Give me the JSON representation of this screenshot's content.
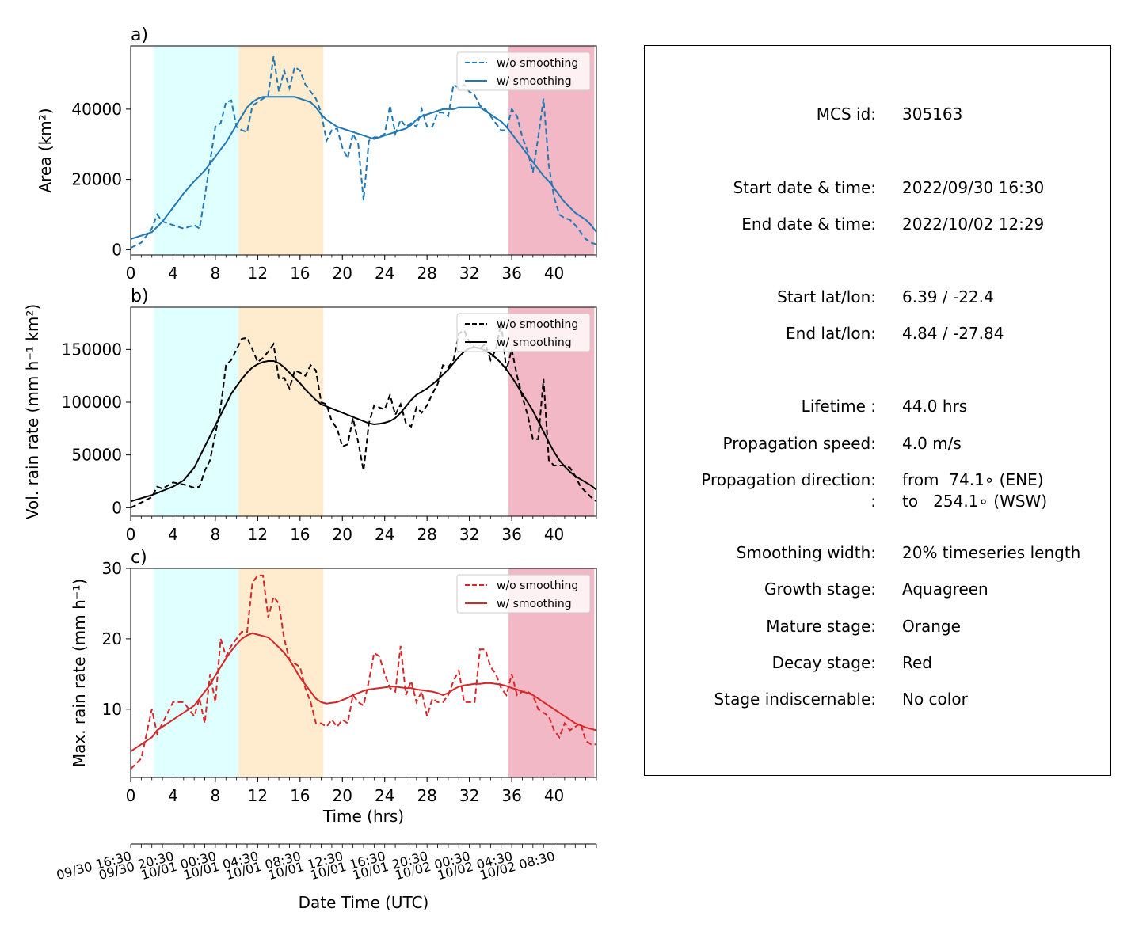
{
  "colors": {
    "growth": "#e0ffff",
    "mature": "#ffebcd",
    "decay": "#f2b8c5",
    "area_line": "#1f77b4",
    "volrain_line": "#000000",
    "maxrain_line": "#d62728"
  },
  "stages": {
    "growth": [
      2.2,
      10.2
    ],
    "mature": [
      10.2,
      18.2
    ],
    "decay": [
      35.7,
      43.8
    ]
  },
  "legend": {
    "raw": "w/o smoothing",
    "smooth": "w/ smoothing",
    "placement": "upper right"
  },
  "chart_data": [
    {
      "type": "line",
      "panel_label": "a)",
      "ylabel": "Area  (km²)",
      "ylim": [
        -1500,
        58000
      ],
      "xlim": [
        0,
        44
      ],
      "yticks": [
        0,
        20000,
        40000
      ],
      "ytick_labels": [
        "0",
        "20000",
        "40000"
      ],
      "xticks": [
        0,
        4,
        8,
        12,
        16,
        20,
        24,
        28,
        32,
        36,
        40
      ],
      "x": [
        0,
        1,
        2,
        2.5,
        3,
        4,
        5,
        6,
        6.5,
        7,
        7.5,
        8,
        8.5,
        9,
        9.5,
        10,
        10.5,
        11,
        11.5,
        12,
        12.5,
        13,
        13.5,
        14,
        14.5,
        15,
        15.5,
        16,
        16.5,
        17,
        17.5,
        18,
        18.5,
        19,
        19.5,
        20,
        20.5,
        21,
        21.5,
        22,
        22.5,
        23,
        23.5,
        24,
        24.5,
        25,
        25.5,
        26,
        26.5,
        27,
        27.5,
        28,
        28.5,
        29,
        29.5,
        30,
        30.5,
        31,
        31.5,
        32,
        32.5,
        33,
        33.5,
        34,
        34.5,
        35,
        35.5,
        36,
        36.5,
        37,
        37.5,
        38,
        38.5,
        39,
        39.5,
        40,
        40.5,
        41,
        41.5,
        42,
        42.5,
        43,
        43.5,
        44
      ],
      "series": [
        {
          "name": "w/o smoothing",
          "style": "dashed",
          "values": [
            500,
            2000,
            6000,
            10000,
            8000,
            7000,
            6000,
            7000,
            6000,
            15000,
            25000,
            35000,
            36000,
            42000,
            42500,
            35000,
            34000,
            33500,
            41000,
            42000,
            43000,
            44000,
            55000,
            45000,
            51000,
            46000,
            52000,
            51000,
            47000,
            45000,
            43000,
            39000,
            31000,
            34000,
            34500,
            29000,
            26000,
            33000,
            30000,
            14000,
            31000,
            32000,
            32000,
            33000,
            41000,
            33000,
            37000,
            35000,
            36000,
            35000,
            40000,
            35000,
            35000,
            39000,
            39000,
            38000,
            47000,
            46000,
            47000,
            45000,
            44000,
            41000,
            40000,
            38000,
            36000,
            34000,
            34000,
            40000,
            38000,
            32000,
            28000,
            22000,
            32000,
            43000,
            24000,
            15000,
            10000,
            9000,
            8500,
            7000,
            5000,
            3000,
            2000,
            1500
          ],
          "smooth_values": [
            3000,
            4000,
            5000,
            6500,
            8000,
            12000,
            16000,
            19500,
            21000,
            22500,
            24500,
            26500,
            28500,
            30500,
            33000,
            35500,
            38000,
            40500,
            42000,
            43000,
            43500,
            43500,
            43500,
            43500,
            43500,
            43500,
            43500,
            43000,
            42500,
            42000,
            40500,
            38500,
            37000,
            36000,
            35000,
            34500,
            34000,
            33500,
            33000,
            32500,
            32000,
            31500,
            32000,
            32500,
            33000,
            33500,
            34000,
            34500,
            35500,
            37000,
            38000,
            38500,
            39000,
            39500,
            40000,
            40000,
            40000,
            40500,
            40500,
            40500,
            40500,
            40500,
            39500,
            38500,
            37500,
            36500,
            35000,
            33000,
            31000,
            29000,
            27000,
            25000,
            23000,
            21000,
            19500,
            17500,
            15500,
            13500,
            12000,
            10500,
            9500,
            8500,
            7000,
            5000
          ]
        }
      ]
    },
    {
      "type": "line",
      "panel_label": "b)",
      "ylabel": "Vol. rain rate (mm h⁻¹ km²)",
      "ylim": [
        -8000,
        190000
      ],
      "xlim": [
        0,
        44
      ],
      "yticks": [
        0,
        50000,
        100000,
        150000
      ],
      "ytick_labels": [
        "0",
        "50000",
        "100000",
        "150000"
      ],
      "xticks": [
        0,
        4,
        8,
        12,
        16,
        20,
        24,
        28,
        32,
        36,
        40
      ],
      "x": [
        0,
        1,
        2,
        2.5,
        3,
        4,
        5,
        6,
        6.5,
        7,
        7.5,
        8,
        8.5,
        9,
        9.5,
        10,
        10.5,
        11,
        11.5,
        12,
        12.5,
        13,
        13.5,
        14,
        14.5,
        15,
        15.5,
        16,
        16.5,
        17,
        17.5,
        18,
        18.5,
        19,
        19.5,
        20,
        20.5,
        21,
        21.5,
        22,
        22.5,
        23,
        23.5,
        24,
        24.5,
        25,
        25.5,
        26,
        26.5,
        27,
        27.5,
        28,
        28.5,
        29,
        29.5,
        30,
        30.5,
        31,
        31.5,
        32,
        32.5,
        33,
        33.5,
        34,
        34.5,
        35,
        35.5,
        36,
        36.5,
        37,
        37.5,
        38,
        38.5,
        39,
        39.5,
        40,
        40.5,
        41,
        41.5,
        42,
        42.5,
        43,
        43.5,
        44
      ],
      "series": [
        {
          "name": "w/o smoothing",
          "style": "dashed",
          "values": [
            0,
            5000,
            10000,
            20000,
            18000,
            24000,
            22000,
            19000,
            20000,
            35000,
            45000,
            70000,
            95000,
            135000,
            140000,
            150000,
            160000,
            161000,
            150000,
            138000,
            142000,
            148000,
            155000,
            122000,
            123000,
            113000,
            130000,
            128000,
            125000,
            135000,
            130000,
            100000,
            98000,
            82000,
            75000,
            58000,
            60000,
            85000,
            62000,
            35000,
            80000,
            97000,
            95000,
            93000,
            107000,
            88000,
            98000,
            80000,
            77000,
            95000,
            90000,
            97000,
            108000,
            117000,
            135000,
            133000,
            140000,
            165000,
            168000,
            157000,
            152000,
            151000,
            155000,
            140000,
            150000,
            175000,
            130000,
            150000,
            125000,
            105000,
            88000,
            65000,
            65000,
            122000,
            45000,
            40000,
            40000,
            40000,
            38000,
            30000,
            20000,
            15000,
            10000,
            6000
          ],
          "smooth_values": [
            6000,
            9000,
            12000,
            14000,
            16000,
            20000,
            26000,
            38000,
            48000,
            58000,
            68000,
            78000,
            88000,
            98000,
            108000,
            115000,
            122000,
            128000,
            133000,
            136000,
            138000,
            139000,
            139000,
            137000,
            133000,
            128000,
            123000,
            118000,
            112000,
            107000,
            102000,
            98000,
            96000,
            94000,
            92000,
            90000,
            88000,
            86000,
            84000,
            82000,
            80000,
            79000,
            79500,
            80500,
            82000,
            85000,
            90000,
            96000,
            102000,
            107000,
            110000,
            113000,
            117000,
            121000,
            126000,
            131000,
            137000,
            143000,
            148000,
            151000,
            152000,
            151000,
            149000,
            146000,
            142000,
            137000,
            131000,
            124000,
            116000,
            108000,
            100000,
            92000,
            82000,
            72000,
            62000,
            53000,
            45000,
            39000,
            34000,
            30000,
            27000,
            24000,
            21000,
            17000
          ]
        }
      ]
    },
    {
      "type": "line",
      "panel_label": "c)",
      "ylabel": "Max. rain rate  (mm h⁻¹)",
      "ylim": [
        0.3,
        30
      ],
      "xlim": [
        0,
        44
      ],
      "xlabel": "Time (hrs)",
      "yticks": [
        10,
        20,
        30
      ],
      "ytick_labels": [
        "10",
        "20",
        "30"
      ],
      "xticks": [
        0,
        4,
        8,
        12,
        16,
        20,
        24,
        28,
        32,
        36,
        40
      ],
      "x": [
        0,
        1,
        2,
        2.5,
        3,
        4,
        5,
        6,
        6.5,
        7,
        7.5,
        8,
        8.5,
        9,
        9.5,
        10,
        10.5,
        11,
        11.5,
        12,
        12.5,
        13,
        13.5,
        14,
        14.5,
        15,
        15.5,
        16,
        16.5,
        17,
        17.5,
        18,
        18.5,
        19,
        19.5,
        20,
        20.5,
        21,
        21.5,
        22,
        22.5,
        23,
        23.5,
        24,
        24.5,
        25,
        25.5,
        26,
        26.5,
        27,
        27.5,
        28,
        28.5,
        29,
        29.5,
        30,
        30.5,
        31,
        31.5,
        32,
        32.5,
        33,
        33.5,
        34,
        34.5,
        35,
        35.5,
        36,
        36.5,
        37,
        37.5,
        38,
        38.5,
        39,
        39.5,
        40,
        40.5,
        41,
        41.5,
        42,
        42.5,
        43,
        43.5,
        44
      ],
      "series": [
        {
          "name": "w/o smoothing",
          "style": "dashed",
          "values": [
            1.5,
            3,
            10,
            6.5,
            8,
            11,
            11,
            9,
            11.5,
            8,
            15,
            11,
            20,
            17.5,
            19,
            20,
            21,
            21,
            28,
            29,
            29,
            23,
            26,
            25,
            20,
            17,
            16.5,
            16,
            13,
            11,
            8,
            8,
            7.5,
            8.5,
            7.5,
            8.5,
            8,
            12,
            11,
            10.5,
            14,
            18,
            17.5,
            15,
            13,
            12.5,
            19,
            12,
            14,
            11,
            12.5,
            9,
            11.5,
            11,
            11,
            12,
            14,
            15.5,
            11,
            11,
            11,
            18.5,
            18.5,
            16,
            15,
            13,
            12,
            15,
            12,
            12.5,
            12.5,
            12,
            10,
            9.5,
            9,
            7,
            6,
            8,
            7,
            7.5,
            8,
            5.5,
            5,
            5
          ],
          "smooth_values": [
            4,
            5,
            6,
            7,
            7.5,
            8.5,
            9.5,
            10.5,
            11.5,
            12.5,
            13.5,
            14.8,
            16,
            17.2,
            18.3,
            19.2,
            20,
            20.5,
            20.8,
            20.6,
            20.4,
            20.2,
            19.5,
            18.8,
            18,
            17,
            15.8,
            14.5,
            13.5,
            12.5,
            11.5,
            11,
            10.8,
            10.9,
            11,
            11.3,
            11.6,
            12,
            12.3,
            12.6,
            12.8,
            12.9,
            13,
            13.1,
            13.2,
            13.2,
            13.1,
            13,
            13,
            12.8,
            12.7,
            12.6,
            12.5,
            12.3,
            12,
            12.3,
            12.8,
            13.2,
            13.4,
            13.5,
            13.6,
            13.6,
            13.7,
            13.7,
            13.6,
            13.5,
            13.3,
            13,
            12.8,
            12.5,
            12.3,
            12,
            11.5,
            11,
            10.5,
            10,
            9.5,
            9,
            8.5,
            8,
            7.7,
            7.4,
            7.2,
            7
          ]
        }
      ],
      "secondary_xaxis": {
        "xlabel": "Date Time (UTC)",
        "tick_labels": [
          "09/30 16:30",
          "09/30 20:30",
          "10/01 00:30",
          "10/01 04:30",
          "10/01 08:30",
          "10/01 12:30",
          "10/01 16:30",
          "10/01 20:30",
          "10/02 00:30",
          "10/02 04:30",
          "10/02 08:30"
        ]
      }
    }
  ],
  "info": {
    "rows": [
      {
        "label": "MCS id:",
        "value": "305163"
      },
      {
        "label": "Start date & time:",
        "value": "2022/09/30 16:30"
      },
      {
        "label": "End date & time:",
        "value": "2022/10/02 12:29"
      },
      {
        "label": "Start lat/lon:",
        "value": "6.39 / -22.4"
      },
      {
        "label": "End lat/lon:",
        "value": "4.84 / -27.84"
      },
      {
        "label": "Lifetime :",
        "value": "44.0 hrs"
      },
      {
        "label": "Propagation speed:",
        "value": "4.0 m/s"
      },
      {
        "label": "Propagation direction:",
        "value": "from  74.1∘ (ENE)"
      },
      {
        "label": ":",
        "value": "to   254.1∘ (WSW)"
      },
      {
        "label": "Smoothing width:",
        "value": "20% timeseries length"
      },
      {
        "label": "Growth stage:",
        "value": "Aquagreen"
      },
      {
        "label": "Mature stage:",
        "value": "Orange"
      },
      {
        "label": "Decay stage:",
        "value": "Red"
      },
      {
        "label": "Stage indiscernable:",
        "value": "No color"
      }
    ]
  }
}
